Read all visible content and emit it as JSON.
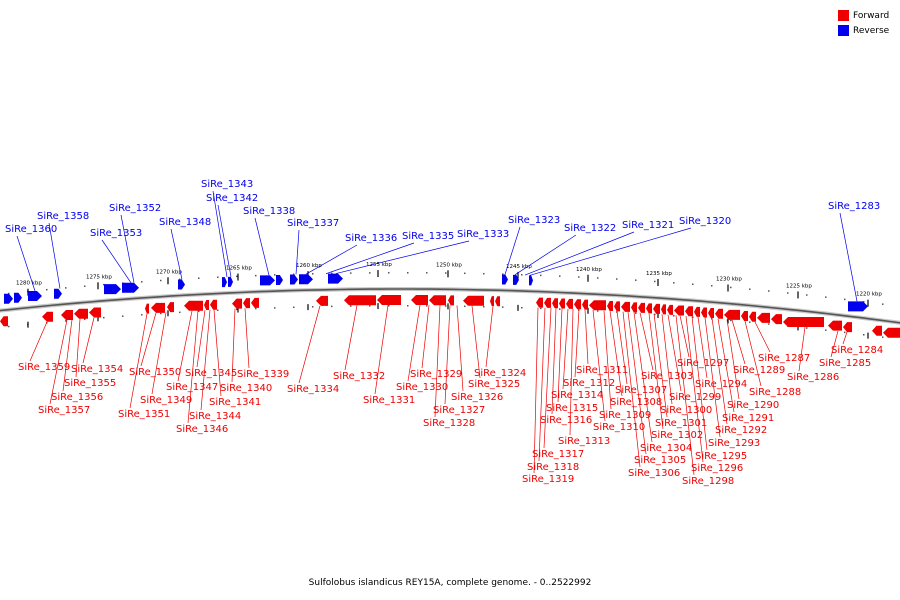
{
  "legend": {
    "forward_label": "Forward",
    "reverse_label": "Reverse",
    "forward_color": "#ee0000",
    "reverse_color": "#0000ee"
  },
  "caption": "Sulfolobus islandicus REY15A, complete genome. - 0..2522992",
  "ticks": [
    "1280 kbp",
    "1275 kbp",
    "1270 kbp",
    "1265 kbp",
    "1260 kbp",
    "1255 kbp",
    "1250 kbp",
    "1245 kbp",
    "1240 kbp",
    "1235 kbp",
    "1230 kbp",
    "1225 kbp",
    "1220 kbp"
  ],
  "reverse_labels": [
    "SiRe_1360",
    "SiRe_1358",
    "SiRe_1353",
    "SiRe_1352",
    "SiRe_1348",
    "SiRe_1343",
    "SiRe_1342",
    "SiRe_1338",
    "SiRe_1337",
    "SiRe_1336",
    "SiRe_1335",
    "SiRe_1333",
    "SiRe_1323",
    "SiRe_1322",
    "SiRe_1321",
    "SiRe_1320",
    "SiRe_1283"
  ],
  "forward_labels": [
    "SiRe_1359",
    "SiRe_1357",
    "SiRe_1356",
    "SiRe_1355",
    "SiRe_1354",
    "SiRe_1351",
    "SiRe_1350",
    "SiRe_1349",
    "SiRe_1347",
    "SiRe_1346",
    "SiRe_1345",
    "SiRe_1344",
    "SiRe_1341",
    "SiRe_1340",
    "SiRe_1339",
    "SiRe_1334",
    "SiRe_1332",
    "SiRe_1331",
    "SiRe_1330",
    "SiRe_1329",
    "SiRe_1328",
    "SiRe_1327",
    "SiRe_1326",
    "SiRe_1325",
    "SiRe_1324",
    "SiRe_1319",
    "SiRe_1318",
    "SiRe_1317",
    "SiRe_1316",
    "SiRe_1315",
    "SiRe_1314",
    "SiRe_1313",
    "SiRe_1312",
    "SiRe_1311",
    "SiRe_1310",
    "SiRe_1309",
    "SiRe_1308",
    "SiRe_1307",
    "SiRe_1306",
    "SiRe_1305",
    "SiRe_1304",
    "SiRe_1303",
    "SiRe_1302",
    "SiRe_1301",
    "SiRe_1300",
    "SiRe_1299",
    "SiRe_1298",
    "SiRe_1297",
    "SiRe_1296",
    "SiRe_1295",
    "SiRe_1294",
    "SiRe_1293",
    "SiRe_1292",
    "SiRe_1291",
    "SiRe_1290",
    "SiRe_1289",
    "SiRe_1288",
    "SiRe_1287",
    "SiRe_1286",
    "SiRe_1285",
    "SiRe_1284"
  ]
}
